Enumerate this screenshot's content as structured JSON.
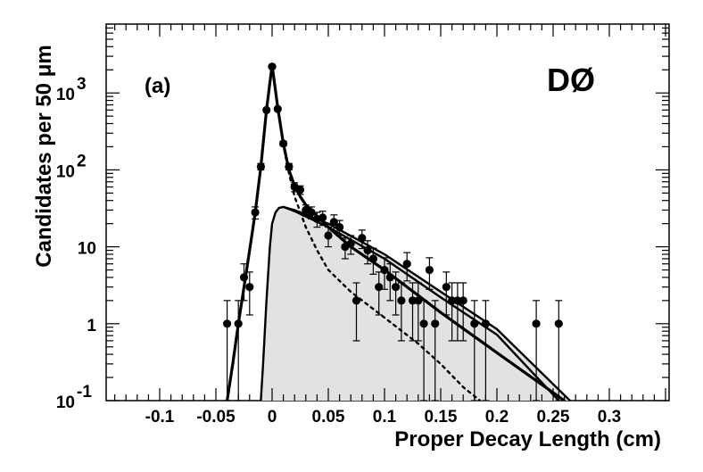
{
  "chart_data": {
    "type": "scatter",
    "title": "",
    "xlabel": "Proper Decay Length  (cm)",
    "ylabel": "Candidates per 50 μm",
    "xlim": [
      -0.15,
      0.35
    ],
    "ylim": [
      0.1,
      10000
    ],
    "log_y": true,
    "grid": false,
    "panel_label": "(a)",
    "experiment_label": "DØ",
    "x_tick_labels": [
      "-0.1",
      "-0.05",
      "0",
      "0.05",
      "0.1",
      "0.15",
      "0.2",
      "0.25",
      "0.3"
    ],
    "x_ticks": [
      -0.1,
      -0.05,
      0,
      0.05,
      0.1,
      0.15,
      0.2,
      0.25,
      0.3
    ],
    "y_ticks": [
      {
        "value": 0.1,
        "base": "10",
        "exp": "-1"
      },
      {
        "value": 1,
        "base": "1",
        "exp": ""
      },
      {
        "value": 10,
        "base": "10",
        "exp": ""
      },
      {
        "value": 100,
        "base": "10",
        "exp": "2"
      },
      {
        "value": 1000,
        "base": "10",
        "exp": "3"
      }
    ],
    "points": [
      {
        "x": -0.04,
        "y": 1,
        "lo": 0.1,
        "hi": 2.0
      },
      {
        "x": -0.03,
        "y": 1,
        "lo": 0.1,
        "hi": 2.0
      },
      {
        "x": -0.025,
        "y": 4,
        "lo": 2.0,
        "hi": 6.0
      },
      {
        "x": -0.02,
        "y": 3,
        "lo": 1.3,
        "hi": 4.7
      },
      {
        "x": -0.015,
        "y": 28,
        "lo": 23,
        "hi": 33
      },
      {
        "x": -0.01,
        "y": 110,
        "lo": 100,
        "hi": 121
      },
      {
        "x": -0.005,
        "y": 600,
        "lo": 575,
        "hi": 625
      },
      {
        "x": 0.0,
        "y": 2200,
        "lo": 2150,
        "hi": 2250
      },
      {
        "x": 0.005,
        "y": 620,
        "lo": 595,
        "hi": 645
      },
      {
        "x": 0.01,
        "y": 220,
        "lo": 205,
        "hi": 235
      },
      {
        "x": 0.015,
        "y": 110,
        "lo": 100,
        "hi": 121
      },
      {
        "x": 0.02,
        "y": 60,
        "lo": 52,
        "hi": 68
      },
      {
        "x": 0.025,
        "y": 55,
        "lo": 48,
        "hi": 62
      },
      {
        "x": 0.03,
        "y": 30,
        "lo": 25,
        "hi": 35
      },
      {
        "x": 0.035,
        "y": 28,
        "lo": 23,
        "hi": 33
      },
      {
        "x": 0.04,
        "y": 23,
        "lo": 18,
        "hi": 28
      },
      {
        "x": 0.045,
        "y": 24,
        "lo": 19,
        "hi": 29
      },
      {
        "x": 0.05,
        "y": 14,
        "lo": 10,
        "hi": 18
      },
      {
        "x": 0.055,
        "y": 21,
        "lo": 16,
        "hi": 26
      },
      {
        "x": 0.06,
        "y": 18,
        "lo": 14,
        "hi": 22
      },
      {
        "x": 0.065,
        "y": 10,
        "lo": 7,
        "hi": 13
      },
      {
        "x": 0.07,
        "y": 11,
        "lo": 8,
        "hi": 14
      },
      {
        "x": 0.075,
        "y": 2,
        "lo": 0.6,
        "hi": 3.4
      },
      {
        "x": 0.08,
        "y": 13,
        "lo": 9.5,
        "hi": 16.5
      },
      {
        "x": 0.085,
        "y": 9,
        "lo": 6,
        "hi": 12
      },
      {
        "x": 0.09,
        "y": 7,
        "lo": 4.4,
        "hi": 9.6
      },
      {
        "x": 0.095,
        "y": 3,
        "lo": 1.3,
        "hi": 4.7
      },
      {
        "x": 0.1,
        "y": 5,
        "lo": 2.8,
        "hi": 7.2
      },
      {
        "x": 0.105,
        "y": 4,
        "lo": 2.0,
        "hi": 6.0
      },
      {
        "x": 0.11,
        "y": 3,
        "lo": 1.3,
        "hi": 4.7
      },
      {
        "x": 0.115,
        "y": 2,
        "lo": 0.6,
        "hi": 3.4
      },
      {
        "x": 0.12,
        "y": 6,
        "lo": 3.6,
        "hi": 8.4
      },
      {
        "x": 0.125,
        "y": 2,
        "lo": 0.6,
        "hi": 3.4
      },
      {
        "x": 0.13,
        "y": 2,
        "lo": 0.6,
        "hi": 3.4
      },
      {
        "x": 0.135,
        "y": 1,
        "lo": 0.1,
        "hi": 2.0
      },
      {
        "x": 0.14,
        "y": 5,
        "lo": 2.8,
        "hi": 7.2
      },
      {
        "x": 0.145,
        "y": 1,
        "lo": 0.1,
        "hi": 2.0
      },
      {
        "x": 0.155,
        "y": 3,
        "lo": 1.3,
        "hi": 4.7
      },
      {
        "x": 0.16,
        "y": 2,
        "lo": 0.6,
        "hi": 3.4
      },
      {
        "x": 0.165,
        "y": 2,
        "lo": 0.6,
        "hi": 3.4
      },
      {
        "x": 0.17,
        "y": 2,
        "lo": 0.6,
        "hi": 3.4
      },
      {
        "x": 0.18,
        "y": 1,
        "lo": 0.1,
        "hi": 2.0
      },
      {
        "x": 0.19,
        "y": 1,
        "lo": 0.1,
        "hi": 2.0
      },
      {
        "x": 0.235,
        "y": 1,
        "lo": 0.1,
        "hi": 2.0
      },
      {
        "x": 0.255,
        "y": 1,
        "lo": 0.1,
        "hi": 2.0
      }
    ],
    "curves": [
      {
        "role": "total-fit",
        "style": "solid",
        "x": [
          -0.04,
          -0.035,
          -0.03,
          -0.025,
          -0.02,
          -0.015,
          -0.01,
          -0.005,
          0.0,
          0.005,
          0.01,
          0.015,
          0.02,
          0.025,
          0.03,
          0.04,
          0.05,
          0.07,
          0.1,
          0.15,
          0.2,
          0.26
        ],
        "y": [
          0.1,
          0.3,
          1.0,
          3.0,
          9.0,
          28,
          110,
          600,
          2300,
          650,
          220,
          100,
          62,
          45,
          35,
          25,
          18,
          10,
          5,
          1.4,
          0.42,
          0.1
        ]
      },
      {
        "role": "signal",
        "style": "solid",
        "x": [
          -0.01,
          -0.008,
          -0.005,
          -0.002,
          0.0,
          0.003,
          0.006,
          0.01,
          0.02,
          0.05,
          0.1,
          0.15,
          0.2,
          0.265
        ],
        "y": [
          0.1,
          0.3,
          2.0,
          10,
          20,
          28,
          32,
          33,
          30,
          20,
          8,
          2.6,
          0.85,
          0.1
        ]
      },
      {
        "role": "signal-band-lower",
        "style": "solid",
        "x": [
          0.01,
          0.02,
          0.05,
          0.1,
          0.15,
          0.2,
          0.255
        ],
        "y": [
          33,
          29,
          18,
          7,
          2.2,
          0.72,
          0.1
        ]
      },
      {
        "role": "background",
        "style": "dotted",
        "x": [
          0.0,
          0.005,
          0.01,
          0.015,
          0.02,
          0.03,
          0.04,
          0.05,
          0.07,
          0.1,
          0.13,
          0.15,
          0.17,
          0.185
        ],
        "y": [
          2300,
          640,
          210,
          90,
          45,
          18,
          9,
          5,
          2.6,
          1.2,
          0.55,
          0.3,
          0.15,
          0.1
        ]
      }
    ]
  }
}
